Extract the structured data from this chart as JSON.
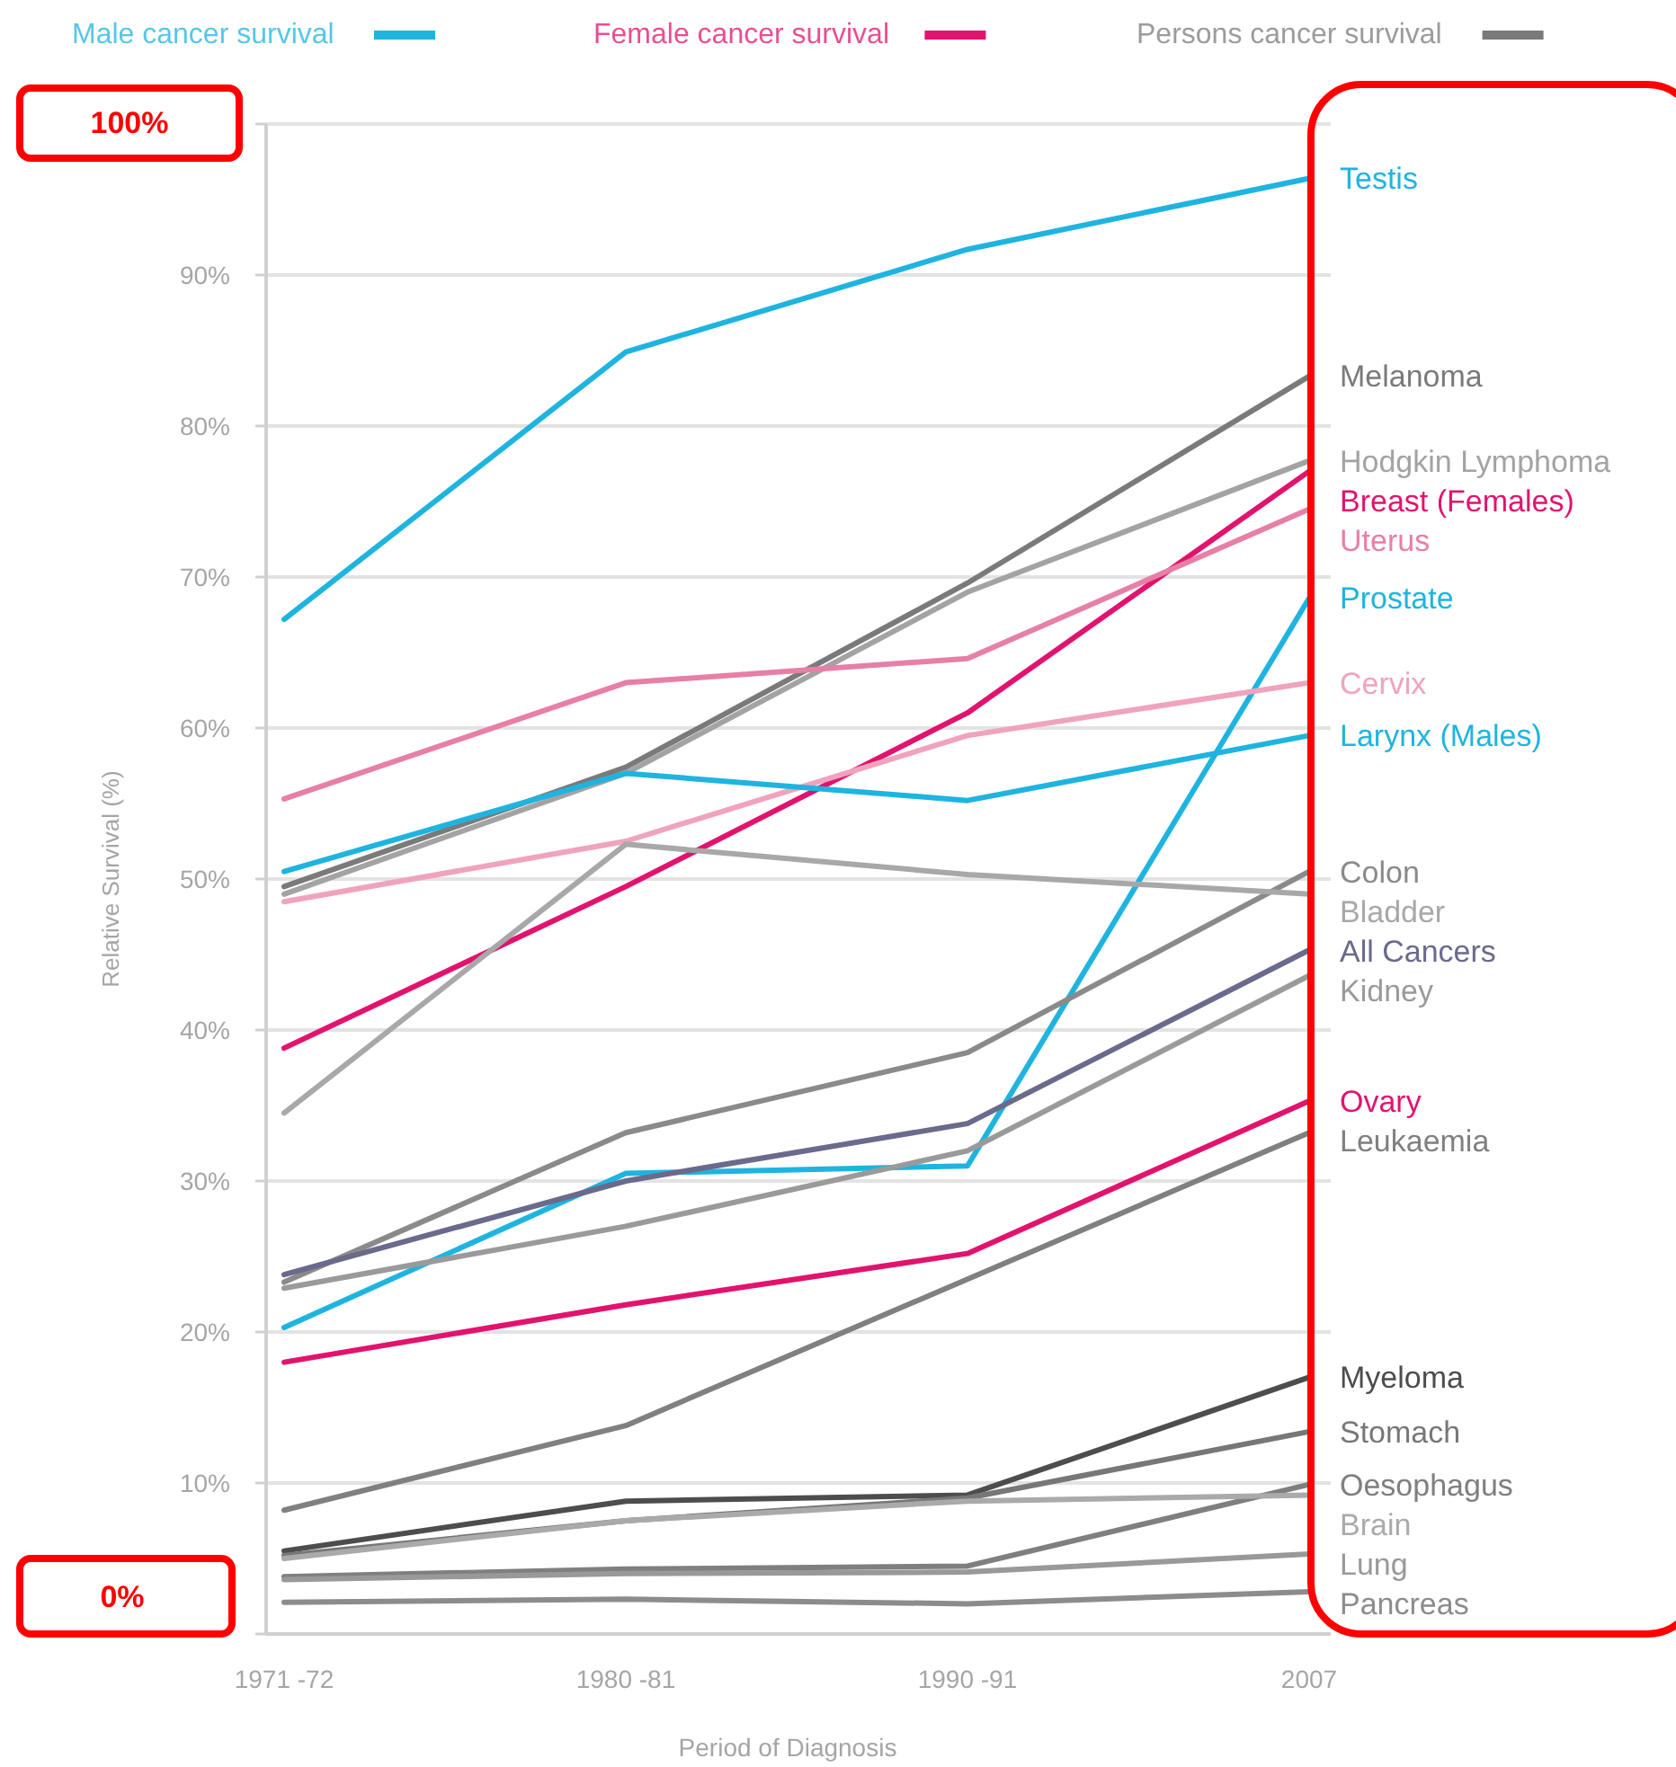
{
  "chart_data": {
    "type": "line",
    "xlabel": "Period of Diagnosis",
    "ylabel": "Relative Survival (%)",
    "categories": [
      "1971 -72",
      "1980 -81",
      "1990 -91",
      "2007"
    ],
    "ylim": [
      0,
      100
    ],
    "yticks": [
      {
        "value": 0,
        "label": null
      },
      {
        "value": 10,
        "label": "10%"
      },
      {
        "value": 20,
        "label": "20%"
      },
      {
        "value": 30,
        "label": "30%"
      },
      {
        "value": 40,
        "label": "40%"
      },
      {
        "value": 50,
        "label": "50%"
      },
      {
        "value": 60,
        "label": "60%"
      },
      {
        "value": 70,
        "label": "70%"
      },
      {
        "value": 80,
        "label": "80%"
      },
      {
        "value": 90,
        "label": "90%"
      },
      {
        "value": 100,
        "label": null
      }
    ],
    "grid": "y",
    "marker": "none",
    "line_style": "solid",
    "annotations": [
      "100%",
      "0%",
      "Male cancer survival",
      "Female cancer survival",
      "Persons cancer survival"
    ],
    "series": [
      {
        "name": "Testis",
        "color": "#1fb4e0",
        "values": [
          67.2,
          84.9,
          91.7,
          96.4
        ]
      },
      {
        "name": "Melanoma",
        "color": "#7a7a7a",
        "values": [
          49.5,
          57.4,
          69.6,
          83.3
        ]
      },
      {
        "name": "Hodgkin Lymphoma",
        "color": "#a3a3a3",
        "values": [
          49,
          57,
          69,
          77.7
        ]
      },
      {
        "name": "Breast (Females)",
        "color": "#e2136e",
        "values": [
          38.8,
          49.5,
          61,
          77
        ]
      },
      {
        "name": "Uterus",
        "color": "#e77fa6",
        "values": [
          55.3,
          63,
          64.6,
          74.5
        ]
      },
      {
        "name": "Prostate",
        "color": "#1fb4e0",
        "values": [
          20.3,
          30.5,
          31,
          68.6
        ]
      },
      {
        "name": "Cervix",
        "color": "#f0a3bd",
        "values": [
          48.5,
          52.5,
          59.5,
          63
        ]
      },
      {
        "name": "Larynx (Males)",
        "color": "#1fb4e0",
        "values": [
          50.5,
          57,
          55.2,
          59.5
        ]
      },
      {
        "name": "Colon",
        "color": "#8a8a8a",
        "values": [
          23.3,
          33.2,
          38.5,
          50.5
        ]
      },
      {
        "name": "Bladder",
        "color": "#a8a8a8",
        "values": [
          34.5,
          52.3,
          50.3,
          49
        ]
      },
      {
        "name": "All Cancers",
        "color": "#6a6a8c",
        "values": [
          23.8,
          30,
          33.8,
          45.3
        ]
      },
      {
        "name": "Kidney",
        "color": "#9a9a9a",
        "values": [
          22.9,
          27,
          32,
          43.6
        ]
      },
      {
        "name": "Ovary",
        "color": "#e2136e",
        "values": [
          18,
          21.8,
          25.2,
          35.3
        ]
      },
      {
        "name": "Leukaemia",
        "color": "#808080",
        "values": [
          8.2,
          13.8,
          23.5,
          33.2
        ]
      },
      {
        "name": "Myeloma",
        "color": "#4d4d4d",
        "values": [
          5.5,
          8.8,
          9.2,
          17
        ]
      },
      {
        "name": "Stomach",
        "color": "#777777",
        "values": [
          5.2,
          7.5,
          9,
          13.4
        ]
      },
      {
        "name": "Oesophagus",
        "color": "#7f7f7f",
        "values": [
          3.8,
          4.3,
          4.5,
          9.9
        ]
      },
      {
        "name": "Brain",
        "color": "#aaaaaa",
        "values": [
          5,
          7.5,
          8.8,
          9.2
        ]
      },
      {
        "name": "Lung",
        "color": "#999999",
        "values": [
          3.6,
          4,
          4.1,
          5.3
        ]
      },
      {
        "name": "Pancreas",
        "color": "#8c8c8c",
        "values": [
          2.1,
          2.3,
          2,
          2.8
        ]
      }
    ]
  }
}
